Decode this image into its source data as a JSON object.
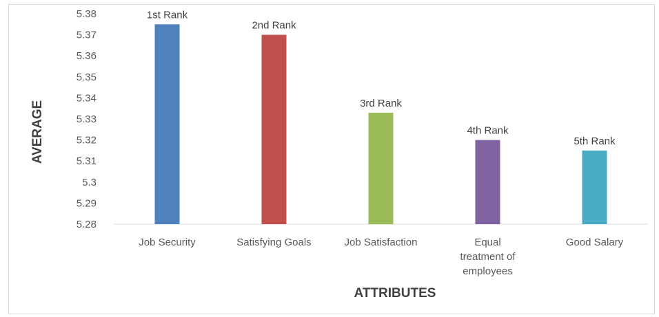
{
  "chart_data": {
    "type": "bar",
    "xlabel": "ATTRIBUTES",
    "ylabel": "AVERAGE",
    "ylim": [
      5.28,
      5.38
    ],
    "yticks": [
      "5.28",
      "5.29",
      "5.3",
      "5.31",
      "5.32",
      "5.33",
      "5.34",
      "5.35",
      "5.36",
      "5.37",
      "5.38"
    ],
    "categories": [
      [
        "Job Security"
      ],
      [
        "Satisfying Goals"
      ],
      [
        "Job Satisfaction"
      ],
      [
        "Equal",
        "treatment of",
        "employees"
      ],
      [
        "Good Salary"
      ]
    ],
    "values": [
      5.375,
      5.37,
      5.333,
      5.32,
      5.315
    ],
    "data_labels": [
      "1st Rank",
      "2nd Rank",
      "3rd Rank",
      "4th Rank",
      "5th Rank"
    ],
    "colors": [
      "#4f81bd",
      "#c0504d",
      "#9bbb59",
      "#8064a2",
      "#4bacc6"
    ],
    "grid": false,
    "legend": "none"
  }
}
